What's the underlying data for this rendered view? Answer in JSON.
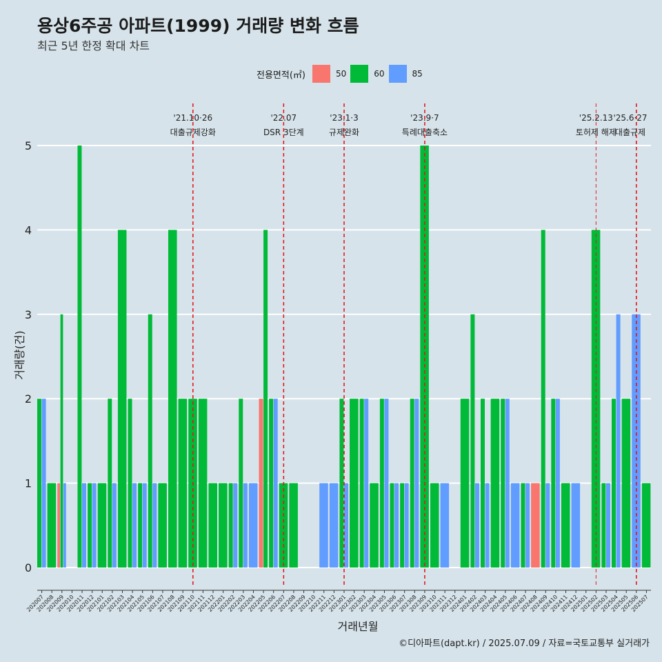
{
  "chart_data": {
    "type": "bar",
    "title": "용상6주공 아파트(1999) 거래량 변화 흐름",
    "subtitle": "최근 5년 한정 확대 차트",
    "legend_title": "전용면적(㎡)",
    "xlabel": "거래년월",
    "ylabel": "거래량(건)",
    "caption": "©디아파트(dapt.kr) / 2025.07.09 / 자료=국토교통부 실거래가",
    "ylim": [
      0,
      5.5
    ],
    "yticks": [
      0,
      1,
      2,
      3,
      4,
      5
    ],
    "grid": "horizontal",
    "legend_position": "top",
    "categories": [
      "202007",
      "202008",
      "202009",
      "202010",
      "202011",
      "202012",
      "202101",
      "202102",
      "202103",
      "202104",
      "202105",
      "202106",
      "202107",
      "202108",
      "202109",
      "202110",
      "202111",
      "202112",
      "202201",
      "202202",
      "202203",
      "202204",
      "202205",
      "202206",
      "202207",
      "202208",
      "202209",
      "202210",
      "202211",
      "202212",
      "202301",
      "202302",
      "202303",
      "202304",
      "202305",
      "202306",
      "202307",
      "202308",
      "202309",
      "202310",
      "202311",
      "202312",
      "202401",
      "202402",
      "202403",
      "202404",
      "202405",
      "202406",
      "202407",
      "202408",
      "202409",
      "202410",
      "202411",
      "202412",
      "202501",
      "202502",
      "202503",
      "202504",
      "202505",
      "202506",
      "202507"
    ],
    "series": [
      {
        "name": "50",
        "color": "#f8766d",
        "values": [
          0,
          0,
          1,
          0,
          0,
          0,
          0,
          0,
          0,
          0,
          0,
          0,
          0,
          0,
          0,
          0,
          0,
          0,
          0,
          0,
          0,
          0,
          2,
          0,
          0,
          0,
          0,
          0,
          0,
          0,
          0,
          0,
          0,
          0,
          0,
          0,
          0,
          0,
          0,
          0,
          0,
          0,
          0,
          0,
          0,
          0,
          0,
          0,
          0,
          1,
          0,
          0,
          0,
          0,
          0,
          0,
          0,
          0,
          0,
          0,
          0
        ]
      },
      {
        "name": "60",
        "color": "#00ba38",
        "values": [
          2,
          1,
          3,
          0,
          5,
          1,
          1,
          2,
          4,
          2,
          1,
          3,
          1,
          4,
          2,
          2,
          2,
          1,
          1,
          1,
          2,
          0,
          4,
          2,
          1,
          1,
          0,
          0,
          0,
          0,
          2,
          2,
          2,
          1,
          2,
          1,
          1,
          2,
          5,
          1,
          0,
          0,
          2,
          3,
          2,
          2,
          2,
          0,
          1,
          0,
          4,
          2,
          1,
          0,
          0,
          4,
          1,
          2,
          2,
          0,
          1
        ]
      },
      {
        "name": "85",
        "color": "#619cff",
        "values": [
          2,
          0,
          1,
          0,
          1,
          1,
          0,
          1,
          0,
          1,
          1,
          1,
          0,
          0,
          0,
          0,
          0,
          0,
          0,
          1,
          1,
          1,
          0,
          2,
          0,
          0,
          0,
          0,
          1,
          1,
          1,
          0,
          2,
          0,
          2,
          1,
          1,
          2,
          0,
          0,
          1,
          0,
          0,
          1,
          1,
          0,
          2,
          1,
          1,
          0,
          1,
          2,
          0,
          1,
          0,
          0,
          1,
          3,
          0,
          3,
          0
        ]
      }
    ],
    "events": [
      {
        "x": "202110",
        "date": "'21.10·26",
        "label": "대출규제강화"
      },
      {
        "x": "202207",
        "date": "'22.07",
        "label": "DSR 3단계"
      },
      {
        "x": "202301",
        "date": "'23.1·3",
        "label": "규제완화"
      },
      {
        "x": "202309",
        "date": "'23.9·7",
        "label": "특례대출축소"
      },
      {
        "x": "202502",
        "date": "'25.2.13",
        "label": "토허제 해제"
      },
      {
        "x": "202506",
        "date": "'25.6·27",
        "label": "대출규제"
      }
    ]
  }
}
